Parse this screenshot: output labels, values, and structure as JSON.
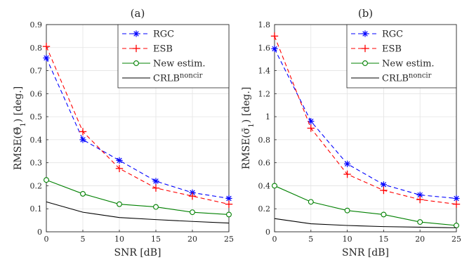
{
  "chart_data": [
    {
      "type": "line",
      "title": "(a)",
      "xlabel": "SNR [dB]",
      "ylabel": {
        "base": "RMSE(",
        "sym": "Θ̄",
        "sub": "1",
        "tail": ") [deg.]"
      },
      "x": [
        0,
        5,
        10,
        15,
        20,
        25
      ],
      "xlim": [
        0,
        25
      ],
      "ylim": [
        0,
        0.9
      ],
      "xticks": [
        "0",
        "5",
        "10",
        "15",
        "20",
        "25"
      ],
      "yticks": [
        "0",
        "0.1",
        "0.2",
        "0.3",
        "0.4",
        "0.5",
        "0.6",
        "0.7",
        "0.8",
        "0.9"
      ],
      "grid": true,
      "legend_position": "top-right",
      "series": [
        {
          "name": "RGC",
          "color": "#0000ff",
          "dash": "dashed",
          "marker": "asterisk",
          "values": [
            0.755,
            0.4,
            0.31,
            0.22,
            0.17,
            0.145
          ]
        },
        {
          "name": "ESB",
          "color": "#ff0000",
          "dash": "dashed",
          "marker": "plus",
          "values": [
            0.805,
            0.435,
            0.275,
            0.19,
            0.155,
            0.12
          ]
        },
        {
          "name": "New estim.",
          "color": "#008000",
          "dash": "solid",
          "marker": "circle",
          "values": [
            0.225,
            0.165,
            0.12,
            0.108,
            0.085,
            0.075
          ]
        },
        {
          "name": "CRLB",
          "name_sup": "noncir",
          "color": "#000000",
          "dash": "solid",
          "marker": "none",
          "values": [
            0.13,
            0.085,
            0.062,
            0.053,
            0.045,
            0.038
          ]
        }
      ]
    },
    {
      "type": "line",
      "title": "(b)",
      "xlabel": "SNR [dB]",
      "ylabel": {
        "base": "RMSE(",
        "sym": "σ̄",
        "sub": "1",
        "tail": ") [deg.]"
      },
      "x": [
        0,
        5,
        10,
        15,
        20,
        25
      ],
      "xlim": [
        0,
        25
      ],
      "ylim": [
        0,
        1.8
      ],
      "xticks": [
        "0",
        "5",
        "10",
        "15",
        "20",
        "25"
      ],
      "yticks": [
        "0",
        "0.2",
        "0.4",
        "0.6",
        "0.8",
        "1",
        "1.2",
        "1.4",
        "1.6",
        "1.8"
      ],
      "grid": true,
      "legend_position": "top-right",
      "series": [
        {
          "name": "RGC",
          "color": "#0000ff",
          "dash": "dashed",
          "marker": "asterisk",
          "values": [
            1.59,
            0.96,
            0.59,
            0.41,
            0.32,
            0.29
          ]
        },
        {
          "name": "ESB",
          "color": "#ff0000",
          "dash": "dashed",
          "marker": "plus",
          "values": [
            1.7,
            0.9,
            0.5,
            0.36,
            0.28,
            0.24
          ]
        },
        {
          "name": "New estim.",
          "color": "#008000",
          "dash": "solid",
          "marker": "circle",
          "values": [
            0.4,
            0.26,
            0.185,
            0.15,
            0.085,
            0.055
          ]
        },
        {
          "name": "CRLB",
          "name_sup": "noncir",
          "color": "#000000",
          "dash": "solid",
          "marker": "none",
          "values": [
            0.115,
            0.07,
            0.055,
            0.045,
            0.04,
            0.035
          ]
        }
      ]
    }
  ]
}
